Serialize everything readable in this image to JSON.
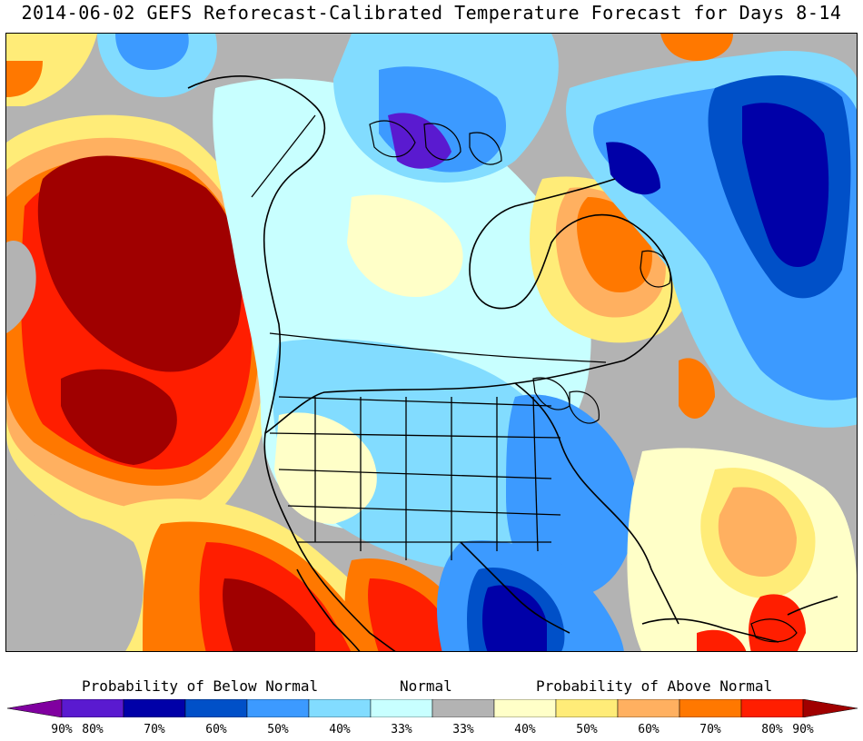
{
  "title": "2014-06-02 GEFS Reforecast-Calibrated Temperature Forecast for Days 8-14",
  "legend": {
    "below_label": "Probability of Below Normal",
    "normal_label": "Normal",
    "above_label": "Probability of Above Normal",
    "bins": [
      {
        "label": "90%",
        "color": "#8000a0"
      },
      {
        "label": "80%",
        "color": "#5a1ad0"
      },
      {
        "label": "70%",
        "color": "#0000a8"
      },
      {
        "label": "60%",
        "color": "#0050c8"
      },
      {
        "label": "50%",
        "color": "#3c9aff"
      },
      {
        "label": "40%",
        "color": "#82dcff"
      },
      {
        "label": "33%",
        "color": "#c8ffff"
      },
      {
        "label": "33%",
        "color": "#b3b3b3"
      },
      {
        "label": "40%",
        "color": "#ffffc8"
      },
      {
        "label": "50%",
        "color": "#ffec78"
      },
      {
        "label": "60%",
        "color": "#ffb060"
      },
      {
        "label": "70%",
        "color": "#ff7800"
      },
      {
        "label": "80%",
        "color": "#ff1e00"
      },
      {
        "label": "90%",
        "color": "#a00000"
      }
    ]
  }
}
